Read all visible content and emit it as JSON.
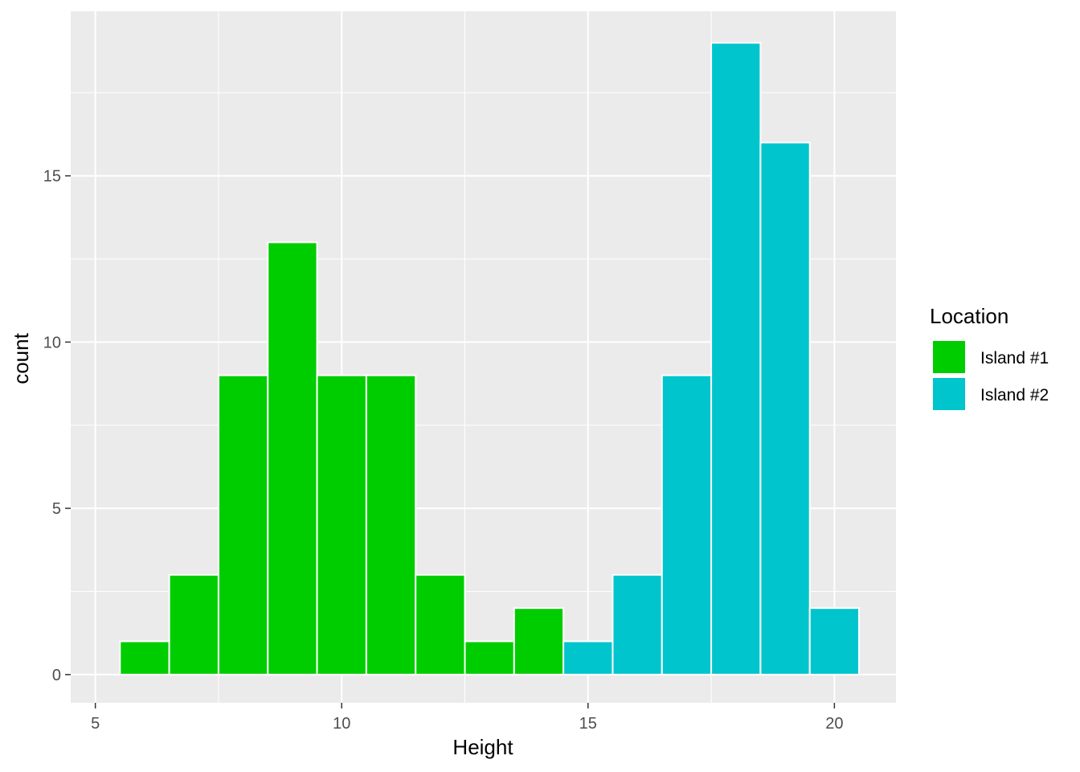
{
  "chart_data": {
    "type": "bar",
    "subtype": "histogram",
    "xlabel": "Height",
    "ylabel": "count",
    "xlim": [
      4.5,
      21.25
    ],
    "ylim": [
      -0.85,
      19.95
    ],
    "x_ticks": [
      5,
      10,
      15,
      20
    ],
    "y_ticks": [
      0,
      5,
      10,
      15
    ],
    "bin_width": 1,
    "grid": true,
    "legend": {
      "title": "Location",
      "position": "right",
      "entries": [
        {
          "label": "Island #1",
          "color": "#00CD00"
        },
        {
          "label": "Island #2",
          "color": "#00C5CD"
        }
      ]
    },
    "series": [
      {
        "name": "Island #1",
        "color": "#00CD00",
        "bins": [
          {
            "x": 6,
            "count": 1
          },
          {
            "x": 7,
            "count": 3
          },
          {
            "x": 8,
            "count": 9
          },
          {
            "x": 9,
            "count": 13
          },
          {
            "x": 10,
            "count": 9
          },
          {
            "x": 11,
            "count": 9
          },
          {
            "x": 12,
            "count": 3
          },
          {
            "x": 13,
            "count": 1
          },
          {
            "x": 14,
            "count": 2
          }
        ]
      },
      {
        "name": "Island #2",
        "color": "#00C5CD",
        "bins": [
          {
            "x": 15,
            "count": 1
          },
          {
            "x": 16,
            "count": 3
          },
          {
            "x": 17,
            "count": 9
          },
          {
            "x": 18,
            "count": 19
          },
          {
            "x": 19,
            "count": 16
          },
          {
            "x": 20,
            "count": 2
          }
        ]
      }
    ]
  }
}
